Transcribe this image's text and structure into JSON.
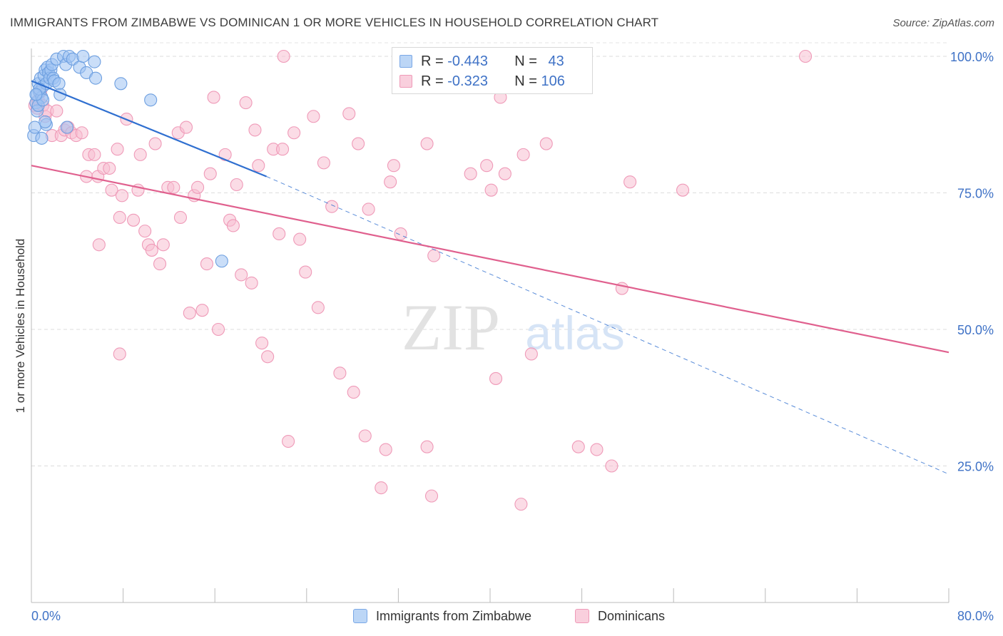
{
  "title": "IMMIGRANTS FROM ZIMBABWE VS DOMINICAN 1 OR MORE VEHICLES IN HOUSEHOLD CORRELATION CHART",
  "source": "Source: ZipAtlas.com",
  "watermark": {
    "zip": "ZIP",
    "atlas": "atlas"
  },
  "legend": {
    "rows": [
      {
        "r_label": "R =",
        "r_value": "-0.443",
        "n_label": "N =",
        "n_value": "43",
        "color": "#8ab4ef"
      },
      {
        "r_label": "R =",
        "r_value": "-0.323",
        "n_label": "N =",
        "n_value": "106",
        "color": "#f4a6c0"
      }
    ]
  },
  "bottom_legend": {
    "series_a": "Immigrants from Zimbabwe",
    "series_b": "Dominicans"
  },
  "colors": {
    "blue_fill": "#9ec3f2",
    "blue_stroke": "#6d9fe0",
    "blue_line": "#2f6fd0",
    "pink_fill": "#f7bfd1",
    "pink_stroke": "#ef9ab8",
    "pink_line": "#e0608e",
    "tick_text": "#3f72c6"
  },
  "chart_data": {
    "type": "scatter",
    "title": "IMMIGRANTS FROM ZIMBABWE VS DOMINICAN 1 OR MORE VEHICLES IN HOUSEHOLD CORRELATION CHART",
    "xlabel": "",
    "ylabel": "1 or more Vehicles in Household",
    "xlim": [
      0,
      80
    ],
    "ylim": [
      0,
      105
    ],
    "x_tick_labels": [
      "0.0%",
      "80.0%"
    ],
    "y_ticks": [
      25,
      50,
      75,
      100
    ],
    "y_tick_labels": [
      "25.0%",
      "50.0%",
      "75.0%",
      "100.0%"
    ],
    "grid": true,
    "series": [
      {
        "name": "Immigrants from Zimbabwe",
        "color": "#9ec3f2",
        "points": [
          [
            0.2,
            85.5
          ],
          [
            0.3,
            87.0
          ],
          [
            0.4,
            91.5
          ],
          [
            0.5,
            93.0
          ],
          [
            0.6,
            95.0
          ],
          [
            0.7,
            93.5
          ],
          [
            0.8,
            96.0
          ],
          [
            0.9,
            92.5
          ],
          [
            1.0,
            94.5
          ],
          [
            1.1,
            96.5
          ],
          [
            1.2,
            97.5
          ],
          [
            1.3,
            95.0
          ],
          [
            1.4,
            98.0
          ],
          [
            1.5,
            97.0
          ],
          [
            1.6,
            96.0
          ],
          [
            1.7,
            97.5
          ],
          [
            1.8,
            98.5
          ],
          [
            1.9,
            96.0
          ],
          [
            2.0,
            95.5
          ],
          [
            2.2,
            99.5
          ],
          [
            2.4,
            95.0
          ],
          [
            2.5,
            93.0
          ],
          [
            2.8,
            100.0
          ],
          [
            3.0,
            98.5
          ],
          [
            3.3,
            100.0
          ],
          [
            3.6,
            99.5
          ],
          [
            4.2,
            98.0
          ],
          [
            4.5,
            100.0
          ],
          [
            4.8,
            97.0
          ],
          [
            5.5,
            99.0
          ],
          [
            5.6,
            96.0
          ],
          [
            7.8,
            95.0
          ],
          [
            10.4,
            92.0
          ],
          [
            0.5,
            90.0
          ],
          [
            0.6,
            91.0
          ],
          [
            0.9,
            85.0
          ],
          [
            1.3,
            87.5
          ],
          [
            1.2,
            88.0
          ],
          [
            3.1,
            87.0
          ],
          [
            0.7,
            94.0
          ],
          [
            1.0,
            92.0
          ],
          [
            16.6,
            62.5
          ],
          [
            0.4,
            93.0
          ]
        ]
      },
      {
        "name": "Dominicans",
        "color": "#f7bfd1",
        "points": [
          [
            0.3,
            91.0
          ],
          [
            0.5,
            90.5
          ],
          [
            0.6,
            92.0
          ],
          [
            0.8,
            93.5
          ],
          [
            1.0,
            91.0
          ],
          [
            1.2,
            89.0
          ],
          [
            1.4,
            90.0
          ],
          [
            1.8,
            85.5
          ],
          [
            2.2,
            90.0
          ],
          [
            2.6,
            85.5
          ],
          [
            2.9,
            86.5
          ],
          [
            3.2,
            87.0
          ],
          [
            3.5,
            86.0
          ],
          [
            3.9,
            85.5
          ],
          [
            4.4,
            86.0
          ],
          [
            4.8,
            78.0
          ],
          [
            5.0,
            82.0
          ],
          [
            5.5,
            82.0
          ],
          [
            5.8,
            78.0
          ],
          [
            6.3,
            79.5
          ],
          [
            6.8,
            79.5
          ],
          [
            7.0,
            75.5
          ],
          [
            7.5,
            83.0
          ],
          [
            7.7,
            70.5
          ],
          [
            7.9,
            74.5
          ],
          [
            8.3,
            88.5
          ],
          [
            8.9,
            70.0
          ],
          [
            9.3,
            75.5
          ],
          [
            9.5,
            82.0
          ],
          [
            9.9,
            68.0
          ],
          [
            10.2,
            65.5
          ],
          [
            10.5,
            64.5
          ],
          [
            10.8,
            84.0
          ],
          [
            11.2,
            62.0
          ],
          [
            11.5,
            65.5
          ],
          [
            11.9,
            76.0
          ],
          [
            12.4,
            76.0
          ],
          [
            12.8,
            86.0
          ],
          [
            13.0,
            70.5
          ],
          [
            13.5,
            87.0
          ],
          [
            13.8,
            53.0
          ],
          [
            14.2,
            74.5
          ],
          [
            14.5,
            76.0
          ],
          [
            14.9,
            53.5
          ],
          [
            15.3,
            62.0
          ],
          [
            15.6,
            78.5
          ],
          [
            15.9,
            92.5
          ],
          [
            16.3,
            50.0
          ],
          [
            16.9,
            82.0
          ],
          [
            17.3,
            70.0
          ],
          [
            17.6,
            69.0
          ],
          [
            17.9,
            76.5
          ],
          [
            18.3,
            60.0
          ],
          [
            18.7,
            91.5
          ],
          [
            19.2,
            58.5
          ],
          [
            19.5,
            86.5
          ],
          [
            19.8,
            80.0
          ],
          [
            20.1,
            47.5
          ],
          [
            20.6,
            45.0
          ],
          [
            21.1,
            83.0
          ],
          [
            21.6,
            67.5
          ],
          [
            21.9,
            83.0
          ],
          [
            22.0,
            100.0
          ],
          [
            22.4,
            29.5
          ],
          [
            22.9,
            86.0
          ],
          [
            23.4,
            66.5
          ],
          [
            23.9,
            60.5
          ],
          [
            24.6,
            89.0
          ],
          [
            25.0,
            54.0
          ],
          [
            25.5,
            80.5
          ],
          [
            26.2,
            72.5
          ],
          [
            26.9,
            42.0
          ],
          [
            27.7,
            89.5
          ],
          [
            28.1,
            38.5
          ],
          [
            28.5,
            84.0
          ],
          [
            29.1,
            30.5
          ],
          [
            29.4,
            72.0
          ],
          [
            30.5,
            21.0
          ],
          [
            30.9,
            28.0
          ],
          [
            31.3,
            77.0
          ],
          [
            31.6,
            80.0
          ],
          [
            32.2,
            67.5
          ],
          [
            33.1,
            100.0
          ],
          [
            34.5,
            28.5
          ],
          [
            34.5,
            84.0
          ],
          [
            34.9,
            19.5
          ],
          [
            35.1,
            63.5
          ],
          [
            38.3,
            78.5
          ],
          [
            39.7,
            80.0
          ],
          [
            40.1,
            75.5
          ],
          [
            40.5,
            41.0
          ],
          [
            40.9,
            92.5
          ],
          [
            41.3,
            78.5
          ],
          [
            42.7,
            18.0
          ],
          [
            42.9,
            82.0
          ],
          [
            43.6,
            45.5
          ],
          [
            44.9,
            84.0
          ],
          [
            47.7,
            28.5
          ],
          [
            49.3,
            28.0
          ],
          [
            50.6,
            25.0
          ],
          [
            51.5,
            57.5
          ],
          [
            52.2,
            77.0
          ],
          [
            56.8,
            75.5
          ],
          [
            67.5,
            100.0
          ],
          [
            7.7,
            45.5
          ],
          [
            5.9,
            65.5
          ]
        ]
      }
    ],
    "trend_lines": [
      {
        "series": "Immigrants from Zimbabwe",
        "x": [
          0,
          20.5
        ],
        "y": [
          95.5,
          78.0
        ],
        "extended_to": [
          80,
          23.5
        ]
      },
      {
        "series": "Dominicans",
        "x": [
          0,
          80
        ],
        "y": [
          80.0,
          45.8
        ]
      }
    ]
  }
}
